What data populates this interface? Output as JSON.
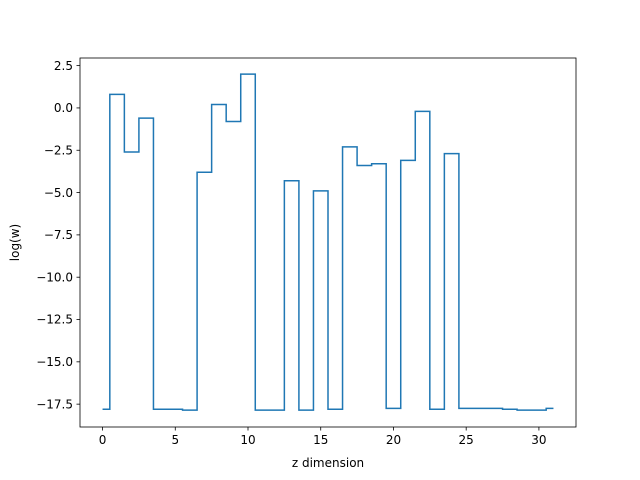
{
  "chart_data": {
    "type": "line",
    "drawstyle": "steps-mid",
    "title": "",
    "xlabel": "z dimension",
    "ylabel": "log(w)",
    "xlim": [
      -1.55,
      32.55
    ],
    "ylim": [
      -18.85,
      2.95
    ],
    "xticks": [
      0,
      5,
      10,
      15,
      20,
      25,
      30
    ],
    "xtick_labels": [
      "0",
      "5",
      "10",
      "15",
      "20",
      "25",
      "30"
    ],
    "yticks": [
      2.5,
      0.0,
      -2.5,
      -5.0,
      -7.5,
      -10.0,
      -12.5,
      -15.0,
      -17.5
    ],
    "ytick_labels": [
      "2.5",
      "0.0",
      "−2.5",
      "−5.0",
      "−7.5",
      "−10.0",
      "−12.5",
      "−15.0",
      "−17.5"
    ],
    "grid": false,
    "series": [
      {
        "color": "#1f77b4",
        "x": [
          0,
          1,
          2,
          3,
          4,
          5,
          6,
          7,
          8,
          9,
          10,
          11,
          12,
          13,
          14,
          15,
          16,
          17,
          18,
          19,
          20,
          21,
          22,
          23,
          24,
          25,
          26,
          27,
          28,
          29,
          30,
          31
        ],
        "y": [
          -17.8,
          0.8,
          -2.6,
          -0.6,
          -17.8,
          -17.8,
          -17.85,
          -3.8,
          0.2,
          -0.8,
          2.0,
          -17.85,
          -17.85,
          -4.3,
          -17.85,
          -4.9,
          -17.8,
          -2.3,
          -3.4,
          -3.3,
          -17.75,
          -3.1,
          -0.2,
          -17.8,
          -2.7,
          -17.75,
          -17.75,
          -17.75,
          -17.8,
          -17.85,
          -17.85,
          -17.75
        ]
      }
    ]
  }
}
